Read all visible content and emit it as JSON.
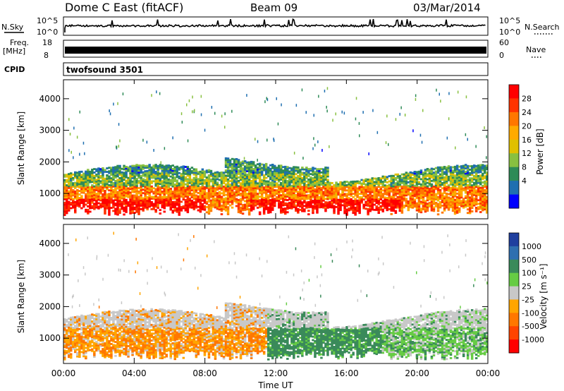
{
  "header": {
    "title": "Dome C East (fitACF)",
    "beam": "Beam 09",
    "date": "03/Mar/2014"
  },
  "top_panels": {
    "nsky": {
      "left_label": "N.Sky",
      "left_ticks": [
        "10^5",
        "10^0"
      ],
      "right_ticks": [
        "10^5",
        "10^0"
      ],
      "right_label": "N.Search"
    },
    "freq": {
      "left_label_1": "Freq.",
      "left_label_2": "[MHz]",
      "left_ticks": [
        "18",
        "8"
      ],
      "right_ticks": [
        "60",
        "0"
      ],
      "right_label": "Nave"
    },
    "cpid": {
      "label": "CPID",
      "program": "twofsound 3501"
    }
  },
  "chart_data": [
    {
      "type": "heatmap",
      "name": "power",
      "ylabel": "Slant Range [km]",
      "ylim": [
        200,
        4600
      ],
      "yticks": [
        1000,
        2000,
        3000,
        4000
      ],
      "xlim": [
        0,
        24
      ],
      "xticks": [
        "00:00",
        "04:00",
        "08:00",
        "12:00",
        "16:00",
        "20:00",
        "00:00"
      ],
      "colorbar": {
        "label": "Power [dB]",
        "ticks": [
          "28",
          "24",
          "20",
          "16",
          "12",
          "8",
          "4"
        ],
        "colors": [
          "#ff0000",
          "#ff3300",
          "#ff7700",
          "#ffaa00",
          "#e0c000",
          "#88c040",
          "#2e8b57",
          "#1f6fb0",
          "#0000ff"
        ]
      }
    },
    {
      "type": "heatmap",
      "name": "velocity",
      "ylabel": "Slant Range [km]",
      "ylim": [
        200,
        4600
      ],
      "yticks": [
        1000,
        2000,
        3000,
        4000
      ],
      "xlim": [
        0,
        24
      ],
      "xticks": [
        "00:00",
        "04:00",
        "08:00",
        "12:00",
        "16:00",
        "20:00",
        "00:00"
      ],
      "xlabel": "Time UT",
      "colorbar": {
        "label": "Velocity [m s⁻¹]",
        "ticks": [
          "1000",
          "500",
          "100",
          "25",
          "-25",
          "-100",
          "-500",
          "-1000"
        ],
        "colors": [
          "#1f3f9f",
          "#2f6fb0",
          "#3a8a5a",
          "#66cc44",
          "#c8c8c8",
          "#ffa500",
          "#ff7700",
          "#ff4400",
          "#ff0000"
        ]
      }
    }
  ],
  "colors": {
    "axis": "#000000",
    "background": "#ffffff"
  }
}
